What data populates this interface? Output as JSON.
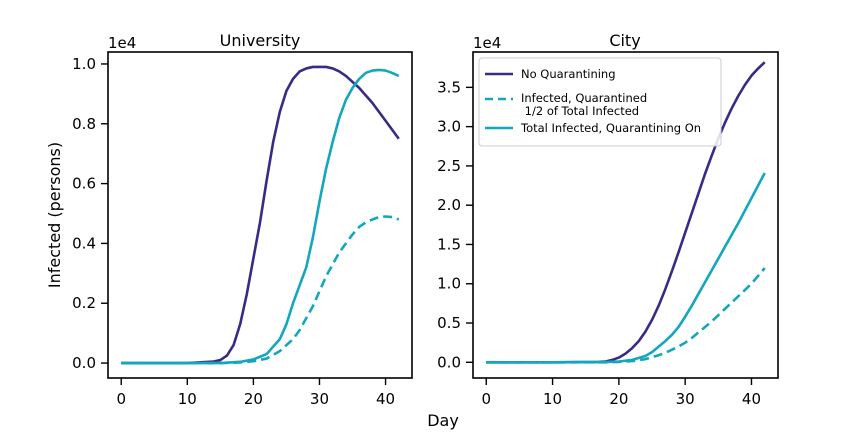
{
  "figure": {
    "xlabel": "Day",
    "ylabel": "Infected (persons)"
  },
  "chart_data": [
    {
      "type": "line",
      "title": "University",
      "xlabel": "Day",
      "ylabel": "Infected (persons)",
      "xlim": [
        -2,
        44
      ],
      "ylim": [
        -0.05,
        1.04
      ],
      "y_multiplier": "1e4",
      "xticks": [
        0,
        10,
        20,
        30,
        40
      ],
      "xtick_labels": [
        "0",
        "10",
        "20",
        "30",
        "40"
      ],
      "yticks": [
        0,
        0.2,
        0.4,
        0.6,
        0.8,
        1.0
      ],
      "ytick_labels": [
        "0.0",
        "0.2",
        "0.4",
        "0.6",
        "0.8",
        "1.0"
      ],
      "grid": false,
      "series": [
        {
          "name": "No Quarantining",
          "color": "#3a2a85",
          "dash": "solid",
          "x": [
            0,
            10,
            14,
            15,
            16,
            17,
            18,
            19,
            20,
            21,
            22,
            23,
            24,
            25,
            26,
            27,
            28,
            29,
            30,
            31,
            32,
            33,
            34,
            36,
            38,
            40,
            42
          ],
          "y": [
            0,
            0,
            0.005,
            0.01,
            0.025,
            0.06,
            0.13,
            0.23,
            0.35,
            0.47,
            0.61,
            0.74,
            0.84,
            0.91,
            0.95,
            0.975,
            0.985,
            0.99,
            0.99,
            0.99,
            0.985,
            0.975,
            0.96,
            0.92,
            0.87,
            0.81,
            0.75
          ]
        },
        {
          "name": "Infected, Quarantined 1/2 of Total Infected",
          "color": "#13a7bd",
          "dash": "dashed",
          "x": [
            0,
            10,
            15,
            18,
            20,
            22,
            24,
            26,
            27,
            28,
            29,
            30,
            31,
            32,
            33,
            34,
            35,
            36,
            37,
            38,
            39,
            40,
            41,
            42
          ],
          "y": [
            0,
            0,
            0,
            0.002,
            0.006,
            0.015,
            0.04,
            0.08,
            0.11,
            0.15,
            0.19,
            0.24,
            0.29,
            0.33,
            0.37,
            0.4,
            0.43,
            0.455,
            0.47,
            0.48,
            0.488,
            0.49,
            0.488,
            0.48
          ]
        },
        {
          "name": "Total Infected, Quarantining On",
          "color": "#13a7bd",
          "dash": "solid",
          "x": [
            0,
            10,
            15,
            18,
            20,
            22,
            24,
            25,
            26,
            27,
            28,
            29,
            30,
            31,
            32,
            33,
            34,
            35,
            36,
            37,
            38,
            39,
            40,
            41,
            42
          ],
          "y": [
            0,
            0,
            0,
            0.004,
            0.012,
            0.03,
            0.08,
            0.13,
            0.2,
            0.26,
            0.32,
            0.42,
            0.54,
            0.65,
            0.74,
            0.82,
            0.88,
            0.92,
            0.95,
            0.97,
            0.978,
            0.98,
            0.978,
            0.97,
            0.96
          ]
        }
      ]
    },
    {
      "type": "line",
      "title": "City",
      "xlabel": "Day",
      "ylabel": "",
      "xlim": [
        -2,
        44
      ],
      "ylim": [
        -0.2,
        3.95
      ],
      "y_multiplier": "1e4",
      "xticks": [
        0,
        10,
        20,
        30,
        40
      ],
      "xtick_labels": [
        "0",
        "10",
        "20",
        "30",
        "40"
      ],
      "yticks": [
        0,
        0.5,
        1.0,
        1.5,
        2.0,
        2.5,
        3.0,
        3.5
      ],
      "ytick_labels": [
        "0.0",
        "0.5",
        "1.0",
        "1.5",
        "2.0",
        "2.5",
        "3.0",
        "3.5"
      ],
      "grid": false,
      "legend": {
        "position": "top-left",
        "entries": [
          {
            "label": "No Quarantining",
            "color": "#3a2a85",
            "dash": "solid"
          },
          {
            "label": "Infected, Quarantined\n 1/2 of Total Infected",
            "color": "#13a7bd",
            "dash": "dashed"
          },
          {
            "label": "Total Infected, Quarantining On",
            "color": "#13a7bd",
            "dash": "solid"
          }
        ]
      },
      "series": [
        {
          "name": "No Quarantining",
          "color": "#3a2a85",
          "dash": "solid",
          "x": [
            0,
            10,
            17,
            18,
            19,
            20,
            21,
            22,
            23,
            24,
            25,
            26,
            27,
            28,
            29,
            30,
            31,
            32,
            33,
            34,
            35,
            36,
            37,
            38,
            39,
            40,
            41,
            42
          ],
          "y": [
            0,
            0,
            0.005,
            0.01,
            0.03,
            0.06,
            0.11,
            0.18,
            0.27,
            0.39,
            0.54,
            0.72,
            0.93,
            1.16,
            1.4,
            1.65,
            1.9,
            2.15,
            2.4,
            2.63,
            2.85,
            3.05,
            3.23,
            3.39,
            3.53,
            3.65,
            3.74,
            3.82
          ]
        },
        {
          "name": "Infected, Quarantined 1/2 of Total Infected",
          "color": "#13a7bd",
          "dash": "dashed",
          "x": [
            0,
            10,
            18,
            20,
            22,
            24,
            25,
            26,
            27,
            28,
            29,
            30,
            31,
            32,
            33,
            34,
            35,
            36,
            37,
            38,
            39,
            40,
            41,
            42
          ],
          "y": [
            0,
            0,
            0,
            0.005,
            0.015,
            0.04,
            0.065,
            0.09,
            0.12,
            0.16,
            0.2,
            0.25,
            0.31,
            0.38,
            0.45,
            0.52,
            0.6,
            0.68,
            0.76,
            0.84,
            0.92,
            1.0,
            1.1,
            1.2
          ]
        },
        {
          "name": "Total Infected, Quarantining On",
          "color": "#13a7bd",
          "dash": "solid",
          "x": [
            0,
            10,
            18,
            20,
            22,
            24,
            25,
            26,
            27,
            28,
            29,
            30,
            31,
            32,
            33,
            34,
            35,
            36,
            37,
            38,
            39,
            40,
            41,
            42
          ],
          "y": [
            0,
            0,
            0.003,
            0.01,
            0.03,
            0.08,
            0.13,
            0.2,
            0.27,
            0.35,
            0.45,
            0.58,
            0.72,
            0.87,
            1.02,
            1.17,
            1.32,
            1.47,
            1.62,
            1.77,
            1.93,
            2.09,
            2.25,
            2.41
          ]
        }
      ]
    }
  ]
}
